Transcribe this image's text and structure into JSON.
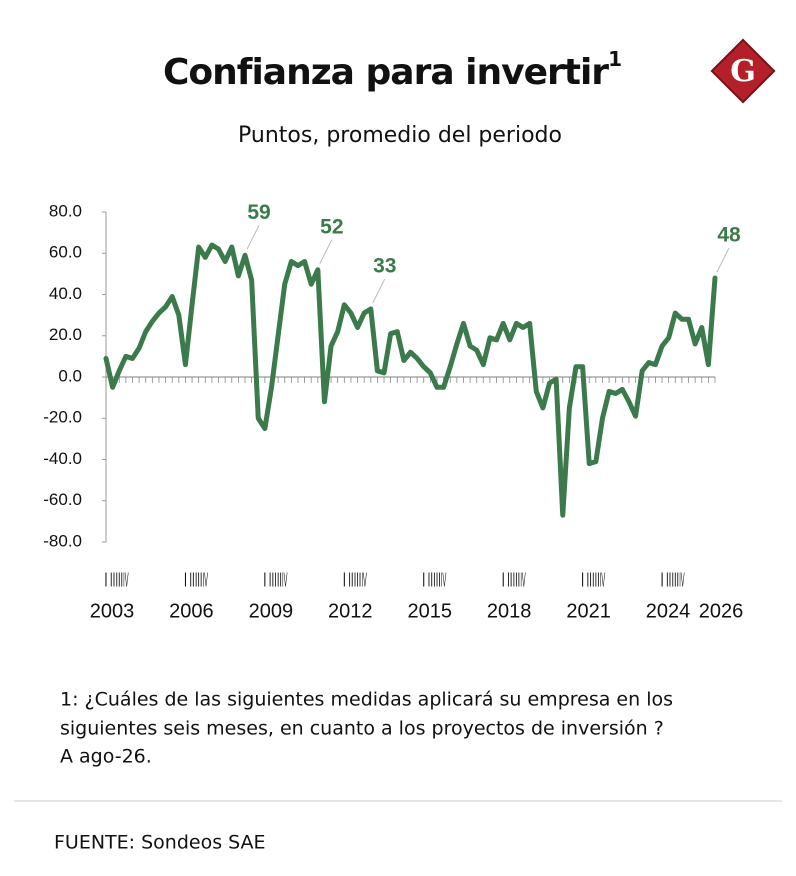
{
  "chart_data": {
    "type": "line",
    "logo": "G",
    "title": "Confianza para invertir",
    "title_note_mark": "1",
    "subtitle": "Puntos, promedio del periodo",
    "series": [
      {
        "name": "Confianza para invertir",
        "color": "#3b7a4a",
        "values": [
          9,
          -5,
          3,
          10,
          9,
          14,
          22,
          27,
          31,
          34,
          39,
          30,
          6,
          35,
          63,
          58,
          64,
          62,
          56,
          63,
          49,
          59,
          47,
          -20,
          -25,
          -5,
          20,
          45,
          56,
          54,
          56,
          45,
          52,
          -12,
          15,
          22,
          35,
          31,
          24,
          31,
          33,
          3,
          2,
          21,
          22,
          8,
          12,
          9,
          5,
          2,
          -5,
          -5,
          5,
          16,
          26,
          15,
          13,
          6,
          19,
          18,
          26,
          18,
          26,
          24,
          26,
          -7,
          -15,
          -3,
          -1,
          -67,
          -15,
          5,
          5,
          -42,
          -41,
          -20,
          -7,
          -8,
          -6,
          -12,
          -19,
          3,
          7,
          6,
          15,
          19,
          31,
          28,
          28,
          16,
          24,
          6,
          48
        ],
        "value_labels": [
          null,
          null,
          null,
          null,
          null,
          null,
          null,
          null,
          null,
          null,
          null,
          null,
          null,
          null,
          null,
          null,
          null,
          null,
          null,
          null,
          null,
          "59",
          null,
          null,
          null,
          null,
          null,
          null,
          null,
          null,
          null,
          null,
          "52",
          null,
          null,
          null,
          null,
          null,
          null,
          null,
          "33",
          null,
          null,
          null,
          null,
          null,
          null,
          null,
          null,
          null,
          null,
          null,
          null,
          null,
          null,
          null,
          null,
          null,
          null,
          null,
          null,
          null,
          null,
          null,
          null,
          null,
          null,
          null,
          null,
          null,
          null,
          null,
          null,
          null,
          null,
          null,
          null,
          null,
          null,
          null,
          null,
          null,
          null,
          null,
          null,
          null,
          null,
          null,
          null,
          null,
          null,
          null,
          "48"
        ]
      }
    ],
    "categories": [
      "I",
      "II",
      "III",
      "IV",
      null,
      null,
      null,
      null,
      null,
      null,
      null,
      null,
      "I",
      "II",
      "III",
      "IV",
      null,
      null,
      null,
      null,
      null,
      null,
      null,
      null,
      "I",
      "II",
      "III",
      "IV",
      null,
      null,
      null,
      null,
      null,
      null,
      null,
      null,
      "I",
      "II",
      "III",
      "IV",
      null,
      null,
      null,
      null,
      null,
      null,
      null,
      null,
      "I",
      "II",
      "III",
      "IV",
      null,
      null,
      null,
      null,
      null,
      null,
      null,
      null,
      "I",
      "II",
      "III",
      "IV",
      null,
      null,
      null,
      null,
      null,
      null,
      null,
      null,
      "I",
      "II",
      "III",
      "IV",
      null,
      null,
      null,
      null,
      null,
      null,
      null,
      null,
      "I",
      "II",
      "III",
      "IV",
      null,
      null,
      null,
      null,
      null
    ],
    "year_labels": [
      2003,
      2006,
      2009,
      2012,
      2015,
      2018,
      2021,
      2024,
      2026
    ],
    "ylim": [
      -80,
      80
    ],
    "yticks": [
      {
        "value": 80,
        "label": "80.0"
      },
      {
        "value": 60,
        "label": "60.0"
      },
      {
        "value": 40,
        "label": "40.0"
      },
      {
        "value": 20,
        "label": "20.0"
      },
      {
        "value": 0,
        "label": "0.0"
      },
      {
        "value": -20,
        "label": "-20.0"
      },
      {
        "value": -40,
        "label": "-40.0"
      },
      {
        "value": -60,
        "label": "-60.0"
      },
      {
        "value": -80,
        "label": "-80.0"
      }
    ],
    "footnote": [
      "1: ¿Cuáles de las siguientes medidas aplicará su empresa en los",
      "siguientes seis meses, en cuanto a los proyectos de inversión ?",
      "A ago-26."
    ],
    "source": "FUENTE: Sondeos SAE"
  }
}
